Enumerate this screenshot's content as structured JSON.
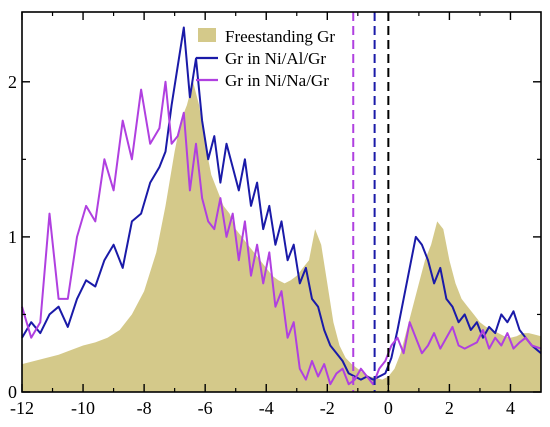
{
  "chart_data": {
    "type": "area",
    "title": "",
    "xlabel": "",
    "ylabel": "",
    "xlim": [
      -12,
      5
    ],
    "ylim": [
      0,
      2.45
    ],
    "grid": false,
    "legend_placement": "top-center",
    "x_ticks": [
      -12,
      -10,
      -8,
      -6,
      -4,
      -2,
      0,
      2,
      4
    ],
    "x_tick_labels": [
      "-12",
      "-10",
      "-8",
      "-6",
      "-4",
      "-2",
      "0",
      "2",
      "4"
    ],
    "y_ticks": [
      0,
      1,
      2
    ],
    "y_tick_labels": [
      "0",
      "1",
      "2"
    ],
    "series": [
      {
        "name": "Freestanding Gr",
        "style": "filled",
        "color": "#d4c98a",
        "x": [
          -12.0,
          -11.6,
          -11.2,
          -10.8,
          -10.4,
          -10.0,
          -9.6,
          -9.2,
          -8.8,
          -8.4,
          -8.0,
          -7.6,
          -7.3,
          -7.0,
          -6.8,
          -6.6,
          -6.4,
          -6.2,
          -6.0,
          -5.8,
          -5.6,
          -5.4,
          -5.2,
          -5.0,
          -4.8,
          -4.6,
          -4.4,
          -4.2,
          -4.0,
          -3.8,
          -3.6,
          -3.4,
          -3.2,
          -3.0,
          -2.8,
          -2.6,
          -2.4,
          -2.2,
          -2.0,
          -1.8,
          -1.6,
          -1.4,
          -1.2,
          -1.0,
          -0.8,
          -0.6,
          -0.4,
          -0.2,
          0.0,
          0.2,
          0.4,
          0.6,
          0.8,
          1.0,
          1.2,
          1.4,
          1.6,
          1.8,
          2.0,
          2.2,
          2.4,
          2.6,
          2.8,
          3.0,
          3.2,
          3.4,
          3.6,
          3.8,
          4.0,
          4.2,
          4.4,
          4.6,
          4.8,
          5.0
        ],
        "values": [
          0.18,
          0.2,
          0.22,
          0.24,
          0.27,
          0.3,
          0.32,
          0.35,
          0.4,
          0.5,
          0.65,
          0.9,
          1.2,
          1.55,
          1.75,
          1.85,
          2.0,
          1.85,
          1.6,
          1.4,
          1.3,
          1.2,
          1.15,
          1.05,
          1.0,
          0.95,
          0.9,
          0.85,
          0.8,
          0.75,
          0.72,
          0.7,
          0.72,
          0.75,
          0.8,
          0.85,
          1.05,
          0.95,
          0.7,
          0.45,
          0.3,
          0.22,
          0.18,
          0.15,
          0.12,
          0.1,
          0.09,
          0.08,
          0.1,
          0.15,
          0.25,
          0.4,
          0.55,
          0.7,
          0.85,
          0.95,
          1.1,
          1.05,
          0.85,
          0.7,
          0.6,
          0.55,
          0.5,
          0.45,
          0.42,
          0.4,
          0.38,
          0.36,
          0.35,
          0.36,
          0.38,
          0.38,
          0.37,
          0.36
        ]
      },
      {
        "name": "Gr in Ni/Al/Gr",
        "style": "line",
        "color": "#1a1aa8",
        "x": [
          -12.0,
          -11.7,
          -11.4,
          -11.1,
          -10.8,
          -10.5,
          -10.2,
          -9.9,
          -9.6,
          -9.3,
          -9.0,
          -8.7,
          -8.4,
          -8.1,
          -7.8,
          -7.5,
          -7.3,
          -7.1,
          -6.9,
          -6.7,
          -6.5,
          -6.3,
          -6.1,
          -5.9,
          -5.7,
          -5.5,
          -5.3,
          -5.1,
          -4.9,
          -4.7,
          -4.5,
          -4.3,
          -4.1,
          -3.9,
          -3.7,
          -3.5,
          -3.3,
          -3.1,
          -2.9,
          -2.7,
          -2.5,
          -2.3,
          -2.1,
          -1.9,
          -1.7,
          -1.5,
          -1.3,
          -1.1,
          -0.9,
          -0.7,
          -0.5,
          -0.3,
          -0.1,
          0.1,
          0.3,
          0.5,
          0.7,
          0.9,
          1.1,
          1.3,
          1.5,
          1.7,
          1.9,
          2.1,
          2.3,
          2.5,
          2.7,
          2.9,
          3.1,
          3.3,
          3.5,
          3.7,
          3.9,
          4.1,
          4.3,
          4.5,
          4.7,
          5.0
        ],
        "values": [
          0.35,
          0.45,
          0.38,
          0.5,
          0.55,
          0.42,
          0.6,
          0.72,
          0.68,
          0.85,
          0.95,
          0.8,
          1.1,
          1.15,
          1.35,
          1.45,
          1.55,
          1.85,
          2.1,
          2.35,
          1.9,
          2.15,
          1.75,
          1.5,
          1.65,
          1.35,
          1.6,
          1.45,
          1.3,
          1.5,
          1.2,
          1.35,
          1.05,
          1.2,
          0.95,
          1.1,
          0.85,
          0.95,
          0.7,
          0.8,
          0.6,
          0.55,
          0.4,
          0.3,
          0.25,
          0.2,
          0.12,
          0.1,
          0.08,
          0.1,
          0.08,
          0.1,
          0.12,
          0.22,
          0.4,
          0.6,
          0.8,
          1.0,
          0.95,
          0.85,
          0.7,
          0.8,
          0.6,
          0.55,
          0.45,
          0.5,
          0.4,
          0.45,
          0.35,
          0.42,
          0.38,
          0.5,
          0.45,
          0.52,
          0.4,
          0.35,
          0.3,
          0.25
        ]
      },
      {
        "name": "Gr in Ni/Na/Gr",
        "style": "line",
        "color": "#b040e0",
        "x": [
          -12.0,
          -11.7,
          -11.4,
          -11.1,
          -10.8,
          -10.5,
          -10.2,
          -9.9,
          -9.6,
          -9.3,
          -9.0,
          -8.7,
          -8.4,
          -8.1,
          -7.8,
          -7.5,
          -7.3,
          -7.1,
          -6.9,
          -6.7,
          -6.5,
          -6.3,
          -6.1,
          -5.9,
          -5.7,
          -5.5,
          -5.3,
          -5.1,
          -4.9,
          -4.7,
          -4.5,
          -4.3,
          -4.1,
          -3.9,
          -3.7,
          -3.5,
          -3.3,
          -3.1,
          -2.9,
          -2.7,
          -2.5,
          -2.3,
          -2.1,
          -1.9,
          -1.7,
          -1.5,
          -1.3,
          -1.1,
          -0.9,
          -0.7,
          -0.5,
          -0.3,
          -0.1,
          0.1,
          0.3,
          0.5,
          0.7,
          0.9,
          1.1,
          1.3,
          1.5,
          1.7,
          1.9,
          2.1,
          2.3,
          2.5,
          2.7,
          2.9,
          3.1,
          3.3,
          3.5,
          3.7,
          3.9,
          4.1,
          4.3,
          4.5,
          4.7,
          5.0
        ],
        "values": [
          0.55,
          0.35,
          0.45,
          1.15,
          0.6,
          0.6,
          1.0,
          1.2,
          1.1,
          1.5,
          1.3,
          1.75,
          1.5,
          1.95,
          1.6,
          1.7,
          2.0,
          1.6,
          1.65,
          1.8,
          1.3,
          1.6,
          1.25,
          1.1,
          1.05,
          1.25,
          1.0,
          1.15,
          0.85,
          1.1,
          0.75,
          0.95,
          0.7,
          0.9,
          0.55,
          0.65,
          0.35,
          0.45,
          0.15,
          0.08,
          0.2,
          0.1,
          0.18,
          0.05,
          0.12,
          0.15,
          0.05,
          0.08,
          0.15,
          0.1,
          0.05,
          0.15,
          0.2,
          0.3,
          0.35,
          0.25,
          0.45,
          0.35,
          0.25,
          0.3,
          0.38,
          0.28,
          0.35,
          0.42,
          0.3,
          0.28,
          0.3,
          0.32,
          0.4,
          0.28,
          0.35,
          0.3,
          0.38,
          0.28,
          0.32,
          0.35,
          0.3,
          0.28
        ]
      }
    ],
    "vertical_lines": [
      {
        "x": -1.15,
        "color": "#b040e0"
      },
      {
        "x": -0.45,
        "color": "#1a1aa8"
      },
      {
        "x": 0.0,
        "color": "#000000"
      }
    ]
  }
}
